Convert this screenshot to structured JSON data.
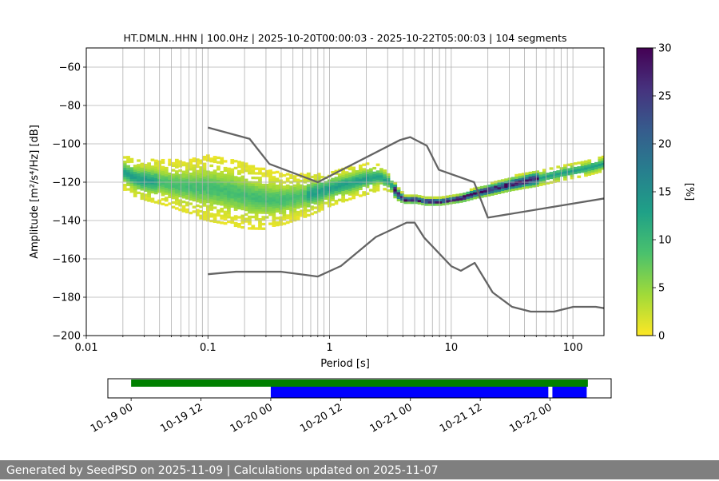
{
  "chart_data": [
    {
      "type": "heatmap",
      "title": "HT.DMLN..HHN | 100.0Hz | 2025-10-20T00:00:03 - 2025-10-22T05:00:03 | 104 segments",
      "xlabel": "Period [s]",
      "ylabel": "Amplitude [m²/s⁴/Hz] [dB]",
      "xscale": "log",
      "xlim": [
        0.01,
        180
      ],
      "ylim": [
        -200,
        -50
      ],
      "xticks": [
        0.01,
        0.1,
        1,
        10,
        100
      ],
      "xtick_labels": [
        "0.01",
        "0.1",
        "1",
        "10",
        "100"
      ],
      "yticks": [
        -200,
        -180,
        -160,
        -140,
        -120,
        -100,
        -80,
        -60
      ],
      "ytick_labels": [
        "−200",
        "−180",
        "−160",
        "−140",
        "−120",
        "−100",
        "−80",
        "−60"
      ],
      "grid": true,
      "mode_curve": [
        [
          0.02,
          -115
        ],
        [
          0.025,
          -118
        ],
        [
          0.03,
          -119
        ],
        [
          0.04,
          -120
        ],
        [
          0.06,
          -122
        ],
        [
          0.1,
          -123
        ],
        [
          0.15,
          -125
        ],
        [
          0.2,
          -127
        ],
        [
          0.3,
          -129
        ],
        [
          0.4,
          -129
        ],
        [
          0.6,
          -127
        ],
        [
          0.8,
          -125
        ],
        [
          1.0,
          -123
        ],
        [
          1.5,
          -120
        ],
        [
          2.0,
          -118
        ],
        [
          2.5,
          -117
        ],
        [
          3.0,
          -120
        ],
        [
          3.5,
          -126
        ],
        [
          4.0,
          -129
        ],
        [
          5.0,
          -129
        ],
        [
          6.0,
          -130
        ],
        [
          8.0,
          -130
        ],
        [
          10.0,
          -129
        ],
        [
          12.0,
          -128
        ],
        [
          15.0,
          -126
        ],
        [
          20.0,
          -124
        ],
        [
          30.0,
          -121
        ],
        [
          50.0,
          -118
        ],
        [
          80.0,
          -115
        ],
        [
          120.0,
          -113
        ],
        [
          180.0,
          -110
        ]
      ],
      "spread_db": [
        [
          0.02,
          8
        ],
        [
          0.05,
          11
        ],
        [
          0.1,
          15
        ],
        [
          0.2,
          15
        ],
        [
          0.4,
          12
        ],
        [
          1.0,
          8
        ],
        [
          2.0,
          7
        ],
        [
          3.0,
          5
        ],
        [
          4.0,
          2
        ],
        [
          10.0,
          2
        ],
        [
          20.0,
          3
        ],
        [
          50.0,
          4
        ],
        [
          100.0,
          4
        ],
        [
          180.0,
          4
        ]
      ],
      "noise_model_high": {
        "name": "NHNM",
        "x": [
          0.1,
          0.22,
          0.32,
          0.8,
          3.8,
          4.6,
          6.3,
          7.9,
          15.4,
          20.0,
          180.0
        ],
        "y": [
          -91.5,
          -97.4,
          -110.5,
          -120.0,
          -98.0,
          -96.5,
          -101.0,
          -113.5,
          -120.0,
          -138.5,
          -128.5
        ]
      },
      "noise_model_low": {
        "name": "NLNM",
        "x": [
          0.1,
          0.17,
          0.4,
          0.8,
          1.24,
          2.4,
          4.3,
          5.0,
          6.0,
          10.0,
          12.0,
          15.6,
          21.9,
          31.6,
          45.0,
          70.0,
          101.0,
          154.0,
          180.0
        ],
        "y": [
          -168.0,
          -166.7,
          -166.7,
          -169.2,
          -163.7,
          -148.6,
          -141.1,
          -141.1,
          -149.0,
          -163.8,
          -166.2,
          -162.1,
          -177.5,
          -185.0,
          -187.5,
          -187.5,
          -185.0,
          -185.0,
          -185.7
        ]
      },
      "colorbar": {
        "label": "[%]",
        "min": 0,
        "max": 30,
        "ticks": [
          0,
          5,
          10,
          15,
          20,
          25,
          30
        ],
        "tick_labels": [
          "0",
          "5",
          "10",
          "15",
          "20",
          "25",
          "30"
        ],
        "colors": [
          "#fde725",
          "#a0da39",
          "#4ac16d",
          "#1fa187",
          "#277f8e",
          "#365c8d",
          "#46327e",
          "#440154"
        ]
      },
      "curve_color": "#646464"
    },
    {
      "type": "timeline",
      "ticks": [
        "10-19 00",
        "10-19 12",
        "10-20 00",
        "10-20 12",
        "10-21 00",
        "10-21 12",
        "10-22 00"
      ],
      "tick_hours": [
        0,
        12,
        24,
        36,
        48,
        60,
        72
      ],
      "xlim_hours": [
        -4,
        82.5
      ],
      "data_span": {
        "start_hour": 0,
        "end_hour": 78.5,
        "color": "#008000"
      },
      "psd_segments": [
        {
          "start_hour": 24,
          "end_hour": 71.7,
          "color": "#0000ff"
        },
        {
          "start_hour": 72.4,
          "end_hour": 78.3,
          "color": "#0000ff"
        }
      ]
    }
  ],
  "footer": {
    "text": "Generated by SeedPSD on 2025-11-09 | Calculations updated on 2025-11-07"
  }
}
